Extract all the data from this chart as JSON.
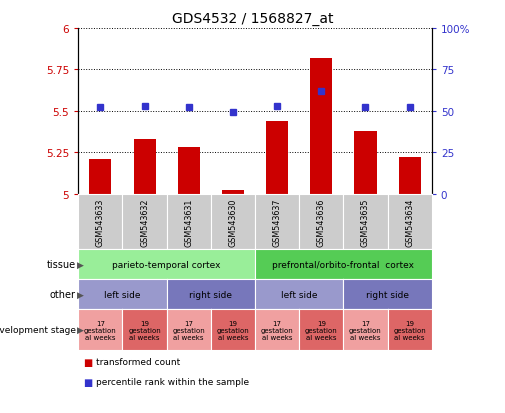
{
  "title": "GDS4532 / 1568827_at",
  "samples": [
    "GSM543633",
    "GSM543632",
    "GSM543631",
    "GSM543630",
    "GSM543637",
    "GSM543636",
    "GSM543635",
    "GSM543634"
  ],
  "transformed_count": [
    5.21,
    5.33,
    5.28,
    5.02,
    5.44,
    5.82,
    5.38,
    5.22
  ],
  "percentile_rank": [
    52,
    53,
    52,
    49,
    53,
    62,
    52,
    52
  ],
  "ylim_left": [
    5.0,
    6.0
  ],
  "ylim_right": [
    0,
    100
  ],
  "yticks_left": [
    5.0,
    5.25,
    5.5,
    5.75,
    6.0
  ],
  "ytick_labels_left": [
    "5",
    "5.25",
    "5.5",
    "5.75",
    "6"
  ],
  "yticks_right": [
    0,
    25,
    50,
    75,
    100
  ],
  "ytick_labels_right": [
    "0",
    "25",
    "50",
    "75",
    "100%"
  ],
  "bar_color": "#cc0000",
  "dot_color": "#3333cc",
  "sample_box_color": "#cccccc",
  "tissue_row": [
    {
      "label": "parieto-temporal cortex",
      "start": 0,
      "end": 4,
      "color": "#99ee99"
    },
    {
      "label": "prefrontal/orbito-frontal  cortex",
      "start": 4,
      "end": 8,
      "color": "#55cc55"
    }
  ],
  "other_row": [
    {
      "label": "left side",
      "start": 0,
      "end": 2,
      "color": "#9999cc"
    },
    {
      "label": "right side",
      "start": 2,
      "end": 4,
      "color": "#7777bb"
    },
    {
      "label": "left side",
      "start": 4,
      "end": 6,
      "color": "#9999cc"
    },
    {
      "label": "right side",
      "start": 6,
      "end": 8,
      "color": "#7777bb"
    }
  ],
  "dev_stage_row": [
    {
      "label": "17\ngestation\nal weeks",
      "start": 0,
      "end": 1,
      "color": "#f0a0a0"
    },
    {
      "label": "19\ngestation\nal weeks",
      "start": 1,
      "end": 2,
      "color": "#dd6666"
    },
    {
      "label": "17\ngestation\nal weeks",
      "start": 2,
      "end": 3,
      "color": "#f0a0a0"
    },
    {
      "label": "19\ngestation\nal weeks",
      "start": 3,
      "end": 4,
      "color": "#dd6666"
    },
    {
      "label": "17\ngestation\nal weeks",
      "start": 4,
      "end": 5,
      "color": "#f0a0a0"
    },
    {
      "label": "19\ngestation\nal weeks",
      "start": 5,
      "end": 6,
      "color": "#dd6666"
    },
    {
      "label": "17\ngestation\nal weeks",
      "start": 6,
      "end": 7,
      "color": "#f0a0a0"
    },
    {
      "label": "19\ngestation\nal weeks",
      "start": 7,
      "end": 8,
      "color": "#dd6666"
    }
  ],
  "legend_items": [
    {
      "label": "transformed count",
      "color": "#cc0000"
    },
    {
      "label": "percentile rank within the sample",
      "color": "#3333cc"
    }
  ]
}
